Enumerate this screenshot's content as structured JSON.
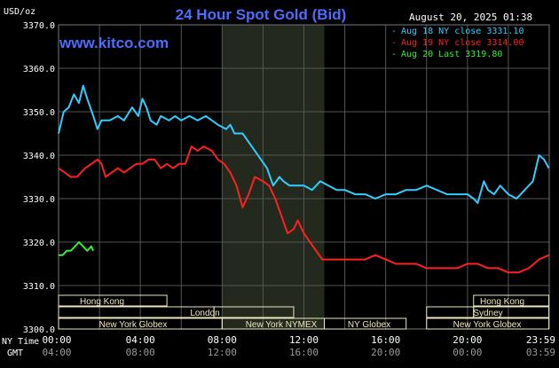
{
  "header": {
    "title": "24 Hour Spot Gold (Bid)",
    "timestamp": "August 20, 2025 01:38",
    "unit_label": "USD/oz",
    "watermark": "www.kitco.com"
  },
  "legend": {
    "items": [
      {
        "label": "Aug 18 NY close 3331.10",
        "color": "#33ccff"
      },
      {
        "label": "Aug 19 NY close 3314.00",
        "color": "#ff2020"
      },
      {
        "label": "Aug 20 Last 3319.80",
        "color": "#33ee33"
      }
    ]
  },
  "axis": {
    "ny_time_label": "NY Time",
    "gmt_label": "GMT",
    "ny_ticks": [
      "00:00",
      "04:00",
      "08:00",
      "12:00",
      "16:00",
      "20:00",
      "23:59"
    ],
    "gmt_ticks": [
      "04:00",
      "08:00",
      "12:00",
      "16:00",
      "20:00",
      "00:00",
      "03:59"
    ],
    "y_ticks": [
      "3370.0",
      "3360.0",
      "3350.0",
      "3340.0",
      "3330.0",
      "3320.0",
      "3310.0",
      "3300.0"
    ]
  },
  "sessions": {
    "hong_kong": "Hong Kong",
    "london": "London",
    "new_york_globex": "New York Globex",
    "new_york_nymex": "New York NYMEX",
    "ny_globex": "NY Globex",
    "sydney": "Sydney"
  },
  "colors": {
    "background": "#000000",
    "grid": "#555555",
    "session_fill": "#ede6be",
    "nymex_shade": "#232a1d",
    "title": "#4b6cff"
  },
  "chart_data": {
    "type": "line",
    "title": "24 Hour Spot Gold (Bid)",
    "xlabel": "NY Time",
    "ylabel": "USD/oz",
    "xlim": [
      0,
      24
    ],
    "ylim": [
      3300,
      3370
    ],
    "grid": true,
    "legend_position": "top-right",
    "series": [
      {
        "name": "Aug 18 NY close 3331.10",
        "color": "#33ccff",
        "points": [
          [
            0,
            3345
          ],
          [
            0.25,
            3350
          ],
          [
            0.5,
            3351
          ],
          [
            0.75,
            3354
          ],
          [
            1,
            3352
          ],
          [
            1.2,
            3356
          ],
          [
            1.4,
            3353
          ],
          [
            1.7,
            3349
          ],
          [
            1.9,
            3346
          ],
          [
            2.1,
            3348
          ],
          [
            2.5,
            3348
          ],
          [
            2.9,
            3349
          ],
          [
            3.2,
            3348
          ],
          [
            3.6,
            3351
          ],
          [
            3.9,
            3349
          ],
          [
            4.1,
            3353
          ],
          [
            4.3,
            3351
          ],
          [
            4.5,
            3348
          ],
          [
            4.8,
            3347
          ],
          [
            5.0,
            3349
          ],
          [
            5.4,
            3348
          ],
          [
            5.7,
            3349
          ],
          [
            6.0,
            3348
          ],
          [
            6.4,
            3349
          ],
          [
            6.8,
            3348
          ],
          [
            7.2,
            3349
          ],
          [
            7.5,
            3348
          ],
          [
            7.8,
            3347
          ],
          [
            8.2,
            3346
          ],
          [
            8.4,
            3347
          ],
          [
            8.6,
            3345
          ],
          [
            9.0,
            3345
          ],
          [
            9.3,
            3343
          ],
          [
            9.6,
            3341
          ],
          [
            9.9,
            3339
          ],
          [
            10.2,
            3337
          ],
          [
            10.5,
            3333
          ],
          [
            10.8,
            3335
          ],
          [
            11.0,
            3334
          ],
          [
            11.3,
            3333
          ],
          [
            11.6,
            3333
          ],
          [
            12.0,
            3333
          ],
          [
            12.4,
            3332
          ],
          [
            12.8,
            3334
          ],
          [
            13.2,
            3333
          ],
          [
            13.6,
            3332
          ],
          [
            14.0,
            3332
          ],
          [
            14.5,
            3331
          ],
          [
            15.0,
            3331
          ],
          [
            15.5,
            3330
          ],
          [
            16.0,
            3331
          ],
          [
            16.5,
            3331
          ],
          [
            17.0,
            3332
          ],
          [
            17.5,
            3332
          ],
          [
            18.0,
            3333
          ],
          [
            18.5,
            3332
          ],
          [
            19.0,
            3331
          ],
          [
            19.5,
            3331
          ],
          [
            20.0,
            3331
          ],
          [
            20.3,
            3330
          ],
          [
            20.5,
            3329
          ],
          [
            20.8,
            3334
          ],
          [
            21.0,
            3332
          ],
          [
            21.3,
            3331
          ],
          [
            21.6,
            3333
          ],
          [
            22.0,
            3331
          ],
          [
            22.4,
            3330
          ],
          [
            22.8,
            3332
          ],
          [
            23.2,
            3334
          ],
          [
            23.5,
            3340
          ],
          [
            23.75,
            3339
          ],
          [
            23.98,
            3337
          ]
        ]
      },
      {
        "name": "Aug 19 NY close 3314.00",
        "color": "#ff2020",
        "points": [
          [
            0,
            3337
          ],
          [
            0.3,
            3336
          ],
          [
            0.6,
            3335
          ],
          [
            0.9,
            3335
          ],
          [
            1.1,
            3336
          ],
          [
            1.3,
            3337
          ],
          [
            1.6,
            3338
          ],
          [
            1.9,
            3339
          ],
          [
            2.1,
            3338
          ],
          [
            2.3,
            3335
          ],
          [
            2.6,
            3336
          ],
          [
            2.9,
            3337
          ],
          [
            3.2,
            3336
          ],
          [
            3.5,
            3337
          ],
          [
            3.8,
            3338
          ],
          [
            4.1,
            3338
          ],
          [
            4.4,
            3339
          ],
          [
            4.7,
            3339
          ],
          [
            5.0,
            3337
          ],
          [
            5.3,
            3338
          ],
          [
            5.6,
            3337
          ],
          [
            5.9,
            3338
          ],
          [
            6.2,
            3338
          ],
          [
            6.5,
            3342
          ],
          [
            6.8,
            3341
          ],
          [
            7.1,
            3342
          ],
          [
            7.5,
            3341
          ],
          [
            7.8,
            3339
          ],
          [
            8.1,
            3338
          ],
          [
            8.4,
            3336
          ],
          [
            8.7,
            3333
          ],
          [
            9.0,
            3328
          ],
          [
            9.3,
            3331
          ],
          [
            9.6,
            3335
          ],
          [
            10.0,
            3334
          ],
          [
            10.3,
            3333
          ],
          [
            10.6,
            3330
          ],
          [
            10.9,
            3326
          ],
          [
            11.2,
            3322
          ],
          [
            11.5,
            3323
          ],
          [
            11.7,
            3325
          ],
          [
            12.0,
            3322
          ],
          [
            12.3,
            3320
          ],
          [
            12.6,
            3318
          ],
          [
            12.9,
            3316
          ],
          [
            13.2,
            3316
          ],
          [
            13.6,
            3316
          ],
          [
            14.0,
            3316
          ],
          [
            14.5,
            3316
          ],
          [
            15.0,
            3316
          ],
          [
            15.5,
            3317
          ],
          [
            16.0,
            3316
          ],
          [
            16.5,
            3315
          ],
          [
            17.0,
            3315
          ],
          [
            17.5,
            3315
          ],
          [
            18.0,
            3314
          ],
          [
            18.5,
            3314
          ],
          [
            19.0,
            3314
          ],
          [
            19.5,
            3314
          ],
          [
            20.0,
            3315
          ],
          [
            20.5,
            3315
          ],
          [
            21.0,
            3314
          ],
          [
            21.5,
            3314
          ],
          [
            22.0,
            3313
          ],
          [
            22.5,
            3313
          ],
          [
            23.0,
            3314
          ],
          [
            23.5,
            3316
          ],
          [
            23.98,
            3317
          ]
        ]
      },
      {
        "name": "Aug 20 Last 3319.80",
        "color": "#33ee33",
        "points": [
          [
            0,
            3317
          ],
          [
            0.2,
            3317
          ],
          [
            0.4,
            3318
          ],
          [
            0.6,
            3318
          ],
          [
            0.8,
            3319
          ],
          [
            1.0,
            3320
          ],
          [
            1.2,
            3319
          ],
          [
            1.4,
            3318
          ],
          [
            1.6,
            3319
          ],
          [
            1.7,
            3318
          ]
        ]
      }
    ]
  }
}
